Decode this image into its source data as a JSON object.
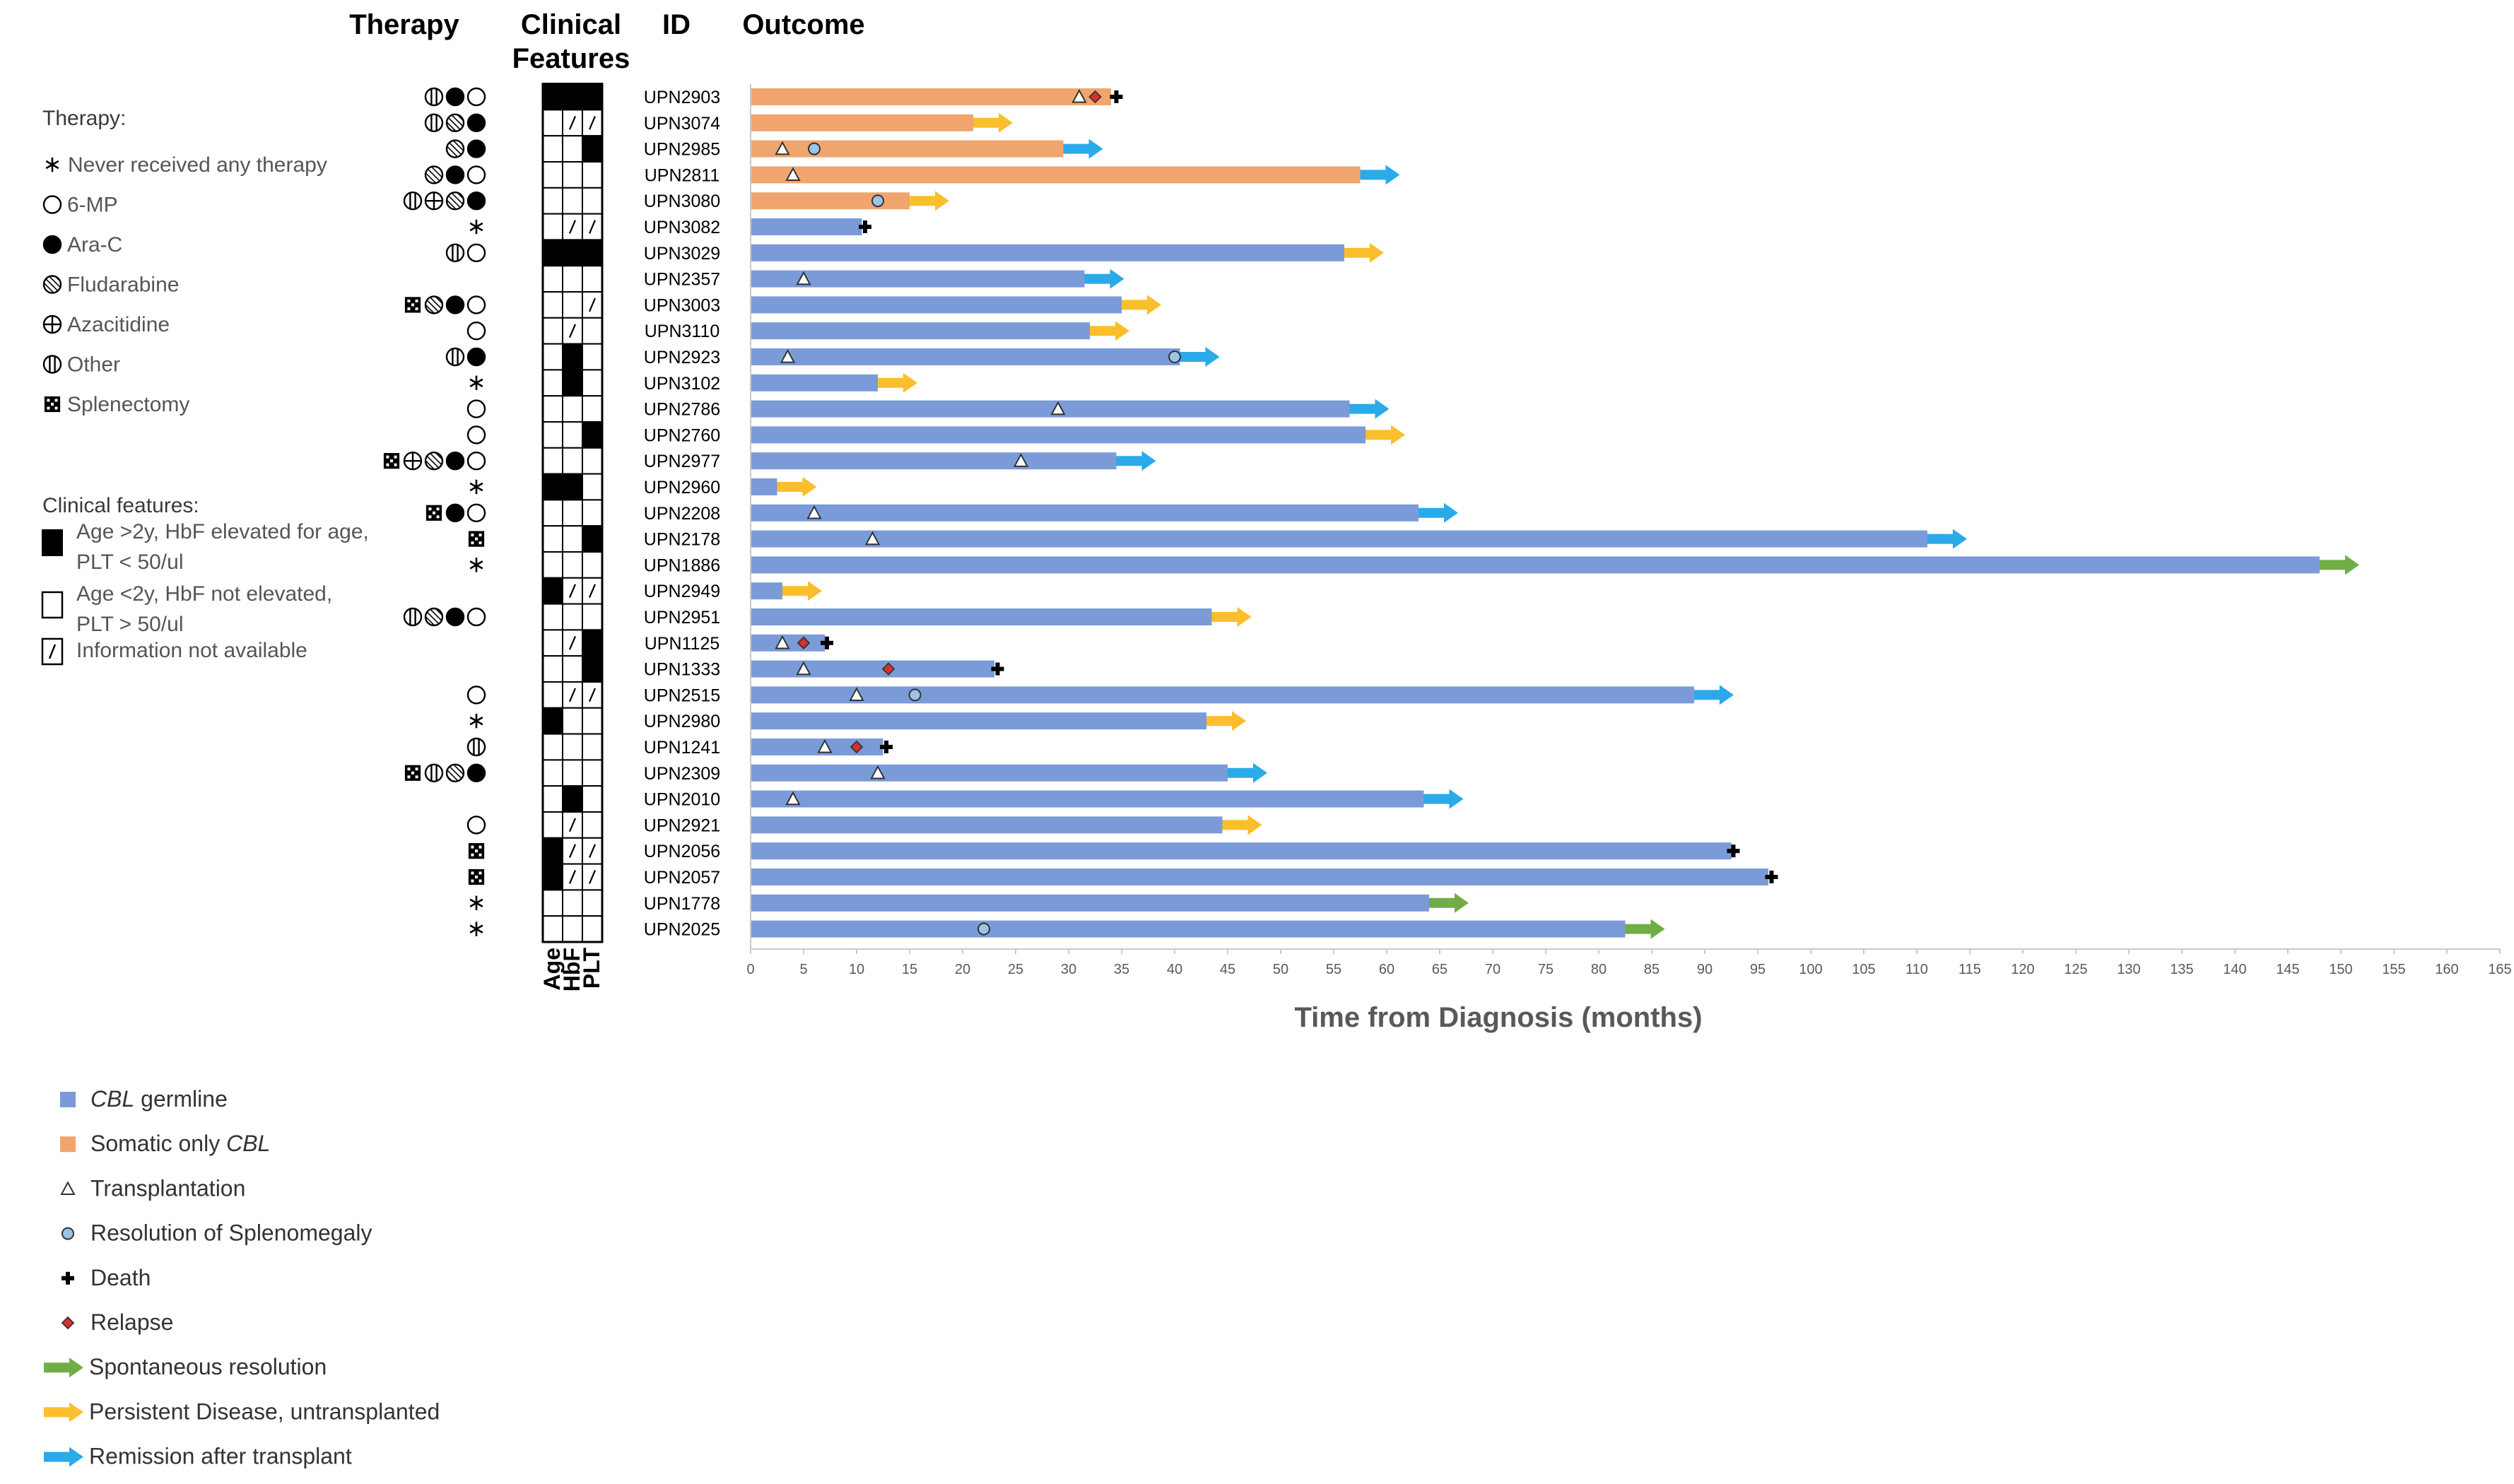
{
  "headers": {
    "therapy": "Therapy",
    "clinical_line1": "Clinical",
    "clinical_line2": "Features",
    "id": "ID",
    "outcome": "Outcome"
  },
  "therapy_legend": {
    "title": "Therapy:",
    "items": [
      {
        "symbol": "star",
        "label": "Never received any therapy"
      },
      {
        "symbol": "mp",
        "label": "6-MP"
      },
      {
        "symbol": "arac",
        "label": "Ara-C"
      },
      {
        "symbol": "flu",
        "label": "Fludarabine"
      },
      {
        "symbol": "aza",
        "label": "Azacitidine"
      },
      {
        "symbol": "other",
        "label": "Other"
      },
      {
        "symbol": "splen",
        "label": "Splenectomy"
      }
    ]
  },
  "clinical_legend": {
    "title": "Clinical features:",
    "items": [
      {
        "symbol": "filled",
        "line1": "Age >2y, HbF elevated for age,",
        "line2": "PLT < 50/ul"
      },
      {
        "symbol": "empty",
        "line1": "Age <2y, HbF not elevated,",
        "line2": "PLT > 50/ul"
      },
      {
        "symbol": "na",
        "line1": "Information not available",
        "line2": ""
      }
    ]
  },
  "clinical_axis_labels": [
    "Age",
    "HbF",
    "PLT"
  ],
  "outcome_legend": {
    "items": [
      {
        "symbol": "blue-square",
        "label_italic": "CBL",
        "label": " germline",
        "italic_first": true
      },
      {
        "symbol": "orange-square",
        "label": "Somatic only ",
        "label_italic": "CBL",
        "italic_first": false
      },
      {
        "symbol": "triangle",
        "label": "Transplantation"
      },
      {
        "symbol": "circle",
        "label": "Resolution of Splenomegaly"
      },
      {
        "symbol": "cross",
        "label": "Death"
      },
      {
        "symbol": "diamond",
        "label": "Relapse"
      },
      {
        "symbol": "green-arrow",
        "label": "Spontaneous resolution"
      },
      {
        "symbol": "yellow-arrow",
        "label": "Persistent Disease, untransplanted"
      },
      {
        "symbol": "blue-arrow",
        "label": "Remission after transplant"
      }
    ]
  },
  "colors": {
    "germline": "#7b9bd8",
    "somatic": "#f0a56e",
    "green_arrow": "#70ad47",
    "yellow_arrow": "#fbbe2c",
    "blue_arrow": "#2aaae8",
    "relapse": "#d9302a",
    "splen_circle": "#9dc3e6",
    "axis": "#c9c9c9",
    "tick_text": "#595959",
    "axis_title": "#595959"
  },
  "chart_data": {
    "type": "bar",
    "xlabel": "Time from Diagnosis (months)",
    "xlim": [
      0,
      165
    ],
    "xticks": [
      0,
      5,
      10,
      15,
      20,
      25,
      30,
      35,
      40,
      45,
      50,
      55,
      60,
      65,
      70,
      75,
      80,
      85,
      90,
      95,
      100,
      105,
      110,
      115,
      120,
      125,
      130,
      135,
      140,
      145,
      150,
      155,
      160,
      165
    ],
    "patients": [
      {
        "id": "UPN2903",
        "type": "somatic",
        "end": 34,
        "outcome": "death",
        "transplant": [
          31
        ],
        "splen": [],
        "relapse": [
          32.5
        ],
        "death": [
          34.5
        ],
        "therapy": [
          "other",
          "arac",
          "mp"
        ],
        "cf": [
          "F",
          "F",
          "F"
        ]
      },
      {
        "id": "UPN3074",
        "type": "somatic",
        "end": 21,
        "outcome": "persistent",
        "transplant": [],
        "splen": [],
        "relapse": [],
        "death": [],
        "therapy": [
          "other",
          "flu",
          "arac"
        ],
        "cf": [
          "E",
          "N",
          "N"
        ]
      },
      {
        "id": "UPN2985",
        "type": "somatic",
        "end": 29.5,
        "outcome": "remission",
        "transplant": [
          3
        ],
        "splen": [
          6
        ],
        "relapse": [],
        "death": [],
        "therapy": [
          "flu",
          "arac"
        ],
        "cf": [
          "E",
          "E",
          "F"
        ]
      },
      {
        "id": "UPN2811",
        "type": "somatic",
        "end": 57.5,
        "outcome": "remission",
        "transplant": [
          4
        ],
        "splen": [],
        "relapse": [],
        "death": [],
        "therapy": [
          "flu",
          "arac",
          "mp"
        ],
        "cf": [
          "E",
          "E",
          "E"
        ]
      },
      {
        "id": "UPN3080",
        "type": "somatic",
        "end": 15,
        "outcome": "persistent",
        "transplant": [],
        "splen": [
          12
        ],
        "relapse": [],
        "death": [],
        "therapy": [
          "other",
          "aza",
          "flu",
          "arac"
        ],
        "cf": [
          "E",
          "E",
          "E"
        ]
      },
      {
        "id": "UPN3082",
        "type": "germline",
        "end": 10.5,
        "outcome": "death",
        "transplant": [],
        "splen": [],
        "relapse": [],
        "death": [
          10.8
        ],
        "therapy": [
          "star"
        ],
        "cf": [
          "E",
          "N",
          "N"
        ]
      },
      {
        "id": "UPN3029",
        "type": "germline",
        "end": 56,
        "outcome": "persistent",
        "transplant": [],
        "splen": [],
        "relapse": [],
        "death": [],
        "therapy": [
          "other",
          "mp"
        ],
        "cf": [
          "F",
          "F",
          "F"
        ]
      },
      {
        "id": "UPN2357",
        "type": "germline",
        "end": 31.5,
        "outcome": "remission",
        "transplant": [
          5
        ],
        "splen": [],
        "relapse": [],
        "death": [],
        "therapy": [],
        "cf": [
          "E",
          "E",
          "E"
        ]
      },
      {
        "id": "UPN3003",
        "type": "germline",
        "end": 35,
        "outcome": "persistent",
        "transplant": [],
        "splen": [],
        "relapse": [],
        "death": [],
        "therapy": [
          "splen",
          "flu",
          "arac",
          "mp"
        ],
        "cf": [
          "E",
          "E",
          "N"
        ]
      },
      {
        "id": "UPN3110",
        "type": "germline",
        "end": 32,
        "outcome": "persistent",
        "transplant": [],
        "splen": [],
        "relapse": [],
        "death": [],
        "therapy": [
          "mp"
        ],
        "cf": [
          "E",
          "N",
          "E"
        ]
      },
      {
        "id": "UPN2923",
        "type": "germline",
        "end": 40.5,
        "outcome": "remission",
        "transplant": [
          3.5
        ],
        "splen": [
          40
        ],
        "relapse": [],
        "death": [],
        "therapy": [
          "other",
          "arac"
        ],
        "cf": [
          "E",
          "F",
          "E"
        ]
      },
      {
        "id": "UPN3102",
        "type": "germline",
        "end": 12,
        "outcome": "persistent",
        "transplant": [],
        "splen": [],
        "relapse": [],
        "death": [],
        "therapy": [
          "star"
        ],
        "cf": [
          "E",
          "F",
          "E"
        ]
      },
      {
        "id": "UPN2786",
        "type": "germline",
        "end": 56.5,
        "outcome": "remission",
        "transplant": [
          29
        ],
        "splen": [],
        "relapse": [],
        "death": [],
        "therapy": [
          "mp"
        ],
        "cf": [
          "E",
          "E",
          "E"
        ]
      },
      {
        "id": "UPN2760",
        "type": "germline",
        "end": 58,
        "outcome": "persistent",
        "transplant": [],
        "splen": [],
        "relapse": [],
        "death": [],
        "therapy": [
          "mp"
        ],
        "cf": [
          "E",
          "E",
          "F"
        ]
      },
      {
        "id": "UPN2977",
        "type": "germline",
        "end": 34.5,
        "outcome": "remission",
        "transplant": [
          25.5
        ],
        "splen": [],
        "relapse": [],
        "death": [],
        "therapy": [
          "splen",
          "aza",
          "flu",
          "arac",
          "mp"
        ],
        "cf": [
          "E",
          "E",
          "E"
        ]
      },
      {
        "id": "UPN2960",
        "type": "germline",
        "end": 2.5,
        "outcome": "persistent",
        "transplant": [],
        "splen": [],
        "relapse": [],
        "death": [],
        "therapy": [
          "star"
        ],
        "cf": [
          "F",
          "F",
          "E"
        ]
      },
      {
        "id": "UPN2208",
        "type": "germline",
        "end": 63,
        "outcome": "remission",
        "transplant": [
          6
        ],
        "splen": [],
        "relapse": [],
        "death": [],
        "therapy": [
          "splen",
          "arac",
          "mp"
        ],
        "cf": [
          "E",
          "E",
          "E"
        ]
      },
      {
        "id": "UPN2178",
        "type": "germline",
        "end": 111,
        "outcome": "remission",
        "transplant": [
          11.5
        ],
        "splen": [],
        "relapse": [],
        "death": [],
        "therapy": [
          "splen"
        ],
        "cf": [
          "E",
          "E",
          "F"
        ]
      },
      {
        "id": "UPN1886",
        "type": "germline",
        "end": 148,
        "outcome": "spontaneous",
        "transplant": [],
        "splen": [],
        "relapse": [],
        "death": [],
        "therapy": [
          "star"
        ],
        "cf": [
          "E",
          "E",
          "E"
        ]
      },
      {
        "id": "UPN2949",
        "type": "germline",
        "end": 3,
        "outcome": "persistent",
        "transplant": [],
        "splen": [],
        "relapse": [],
        "death": [],
        "therapy": [],
        "cf": [
          "F",
          "N",
          "N"
        ]
      },
      {
        "id": "UPN2951",
        "type": "germline",
        "end": 43.5,
        "outcome": "persistent",
        "transplant": [],
        "splen": [],
        "relapse": [],
        "death": [],
        "therapy": [
          "other",
          "flu",
          "arac",
          "mp"
        ],
        "cf": [
          "E",
          "E",
          "E"
        ]
      },
      {
        "id": "UPN1125",
        "type": "germline",
        "end": 7,
        "outcome": "death",
        "transplant": [
          3
        ],
        "splen": [],
        "relapse": [
          5
        ],
        "death": [
          7.2
        ],
        "therapy": [],
        "cf": [
          "E",
          "N",
          "F"
        ]
      },
      {
        "id": "UPN1333",
        "type": "germline",
        "end": 23,
        "outcome": "death",
        "transplant": [
          5
        ],
        "splen": [],
        "relapse": [
          13
        ],
        "death": [
          23.3
        ],
        "therapy": [],
        "cf": [
          "E",
          "E",
          "F"
        ]
      },
      {
        "id": "UPN2515",
        "type": "germline",
        "end": 89,
        "outcome": "remission",
        "transplant": [
          10
        ],
        "splen": [
          15.5
        ],
        "relapse": [],
        "death": [],
        "therapy": [
          "mp"
        ],
        "cf": [
          "E",
          "N",
          "N"
        ]
      },
      {
        "id": "UPN2980",
        "type": "germline",
        "end": 43,
        "outcome": "persistent",
        "transplant": [],
        "splen": [],
        "relapse": [],
        "death": [],
        "therapy": [
          "star"
        ],
        "cf": [
          "F",
          "E",
          "E"
        ]
      },
      {
        "id": "UPN1241",
        "type": "germline",
        "end": 12.5,
        "outcome": "death",
        "transplant": [
          7
        ],
        "splen": [],
        "relapse": [
          10
        ],
        "death": [
          12.8
        ],
        "therapy": [
          "other"
        ],
        "cf": [
          "E",
          "E",
          "E"
        ]
      },
      {
        "id": "UPN2309",
        "type": "germline",
        "end": 45,
        "outcome": "remission",
        "transplant": [
          12
        ],
        "splen": [],
        "relapse": [],
        "death": [],
        "therapy": [
          "splen",
          "other",
          "flu",
          "arac"
        ],
        "cf": [
          "E",
          "E",
          "E"
        ]
      },
      {
        "id": "UPN2010",
        "type": "germline",
        "end": 63.5,
        "outcome": "remission",
        "transplant": [
          4
        ],
        "splen": [],
        "relapse": [],
        "death": [],
        "therapy": [],
        "cf": [
          "E",
          "F",
          "E"
        ]
      },
      {
        "id": "UPN2921",
        "type": "germline",
        "end": 44.5,
        "outcome": "persistent",
        "transplant": [],
        "splen": [],
        "relapse": [],
        "death": [],
        "therapy": [
          "mp"
        ],
        "cf": [
          "E",
          "N",
          "E"
        ]
      },
      {
        "id": "UPN2056",
        "type": "germline",
        "end": 92.5,
        "outcome": "death",
        "transplant": [],
        "splen": [],
        "relapse": [],
        "death": [
          92.7
        ],
        "therapy": [
          "splen"
        ],
        "cf": [
          "F",
          "N",
          "N"
        ]
      },
      {
        "id": "UPN2057",
        "type": "germline",
        "end": 96,
        "outcome": "death",
        "transplant": [],
        "splen": [],
        "relapse": [],
        "death": [
          96.3
        ],
        "therapy": [
          "splen"
        ],
        "cf": [
          "F",
          "N",
          "N"
        ]
      },
      {
        "id": "UPN1778",
        "type": "germline",
        "end": 64,
        "outcome": "spontaneous",
        "transplant": [],
        "splen": [],
        "relapse": [],
        "death": [],
        "therapy": [
          "star"
        ],
        "cf": [
          "E",
          "E",
          "E"
        ]
      },
      {
        "id": "UPN2025",
        "type": "germline",
        "end": 82.5,
        "outcome": "spontaneous",
        "transplant": [],
        "splen": [
          22
        ],
        "relapse": [],
        "death": [],
        "therapy": [
          "star"
        ],
        "cf": [
          "E",
          "E",
          "E"
        ]
      }
    ]
  }
}
